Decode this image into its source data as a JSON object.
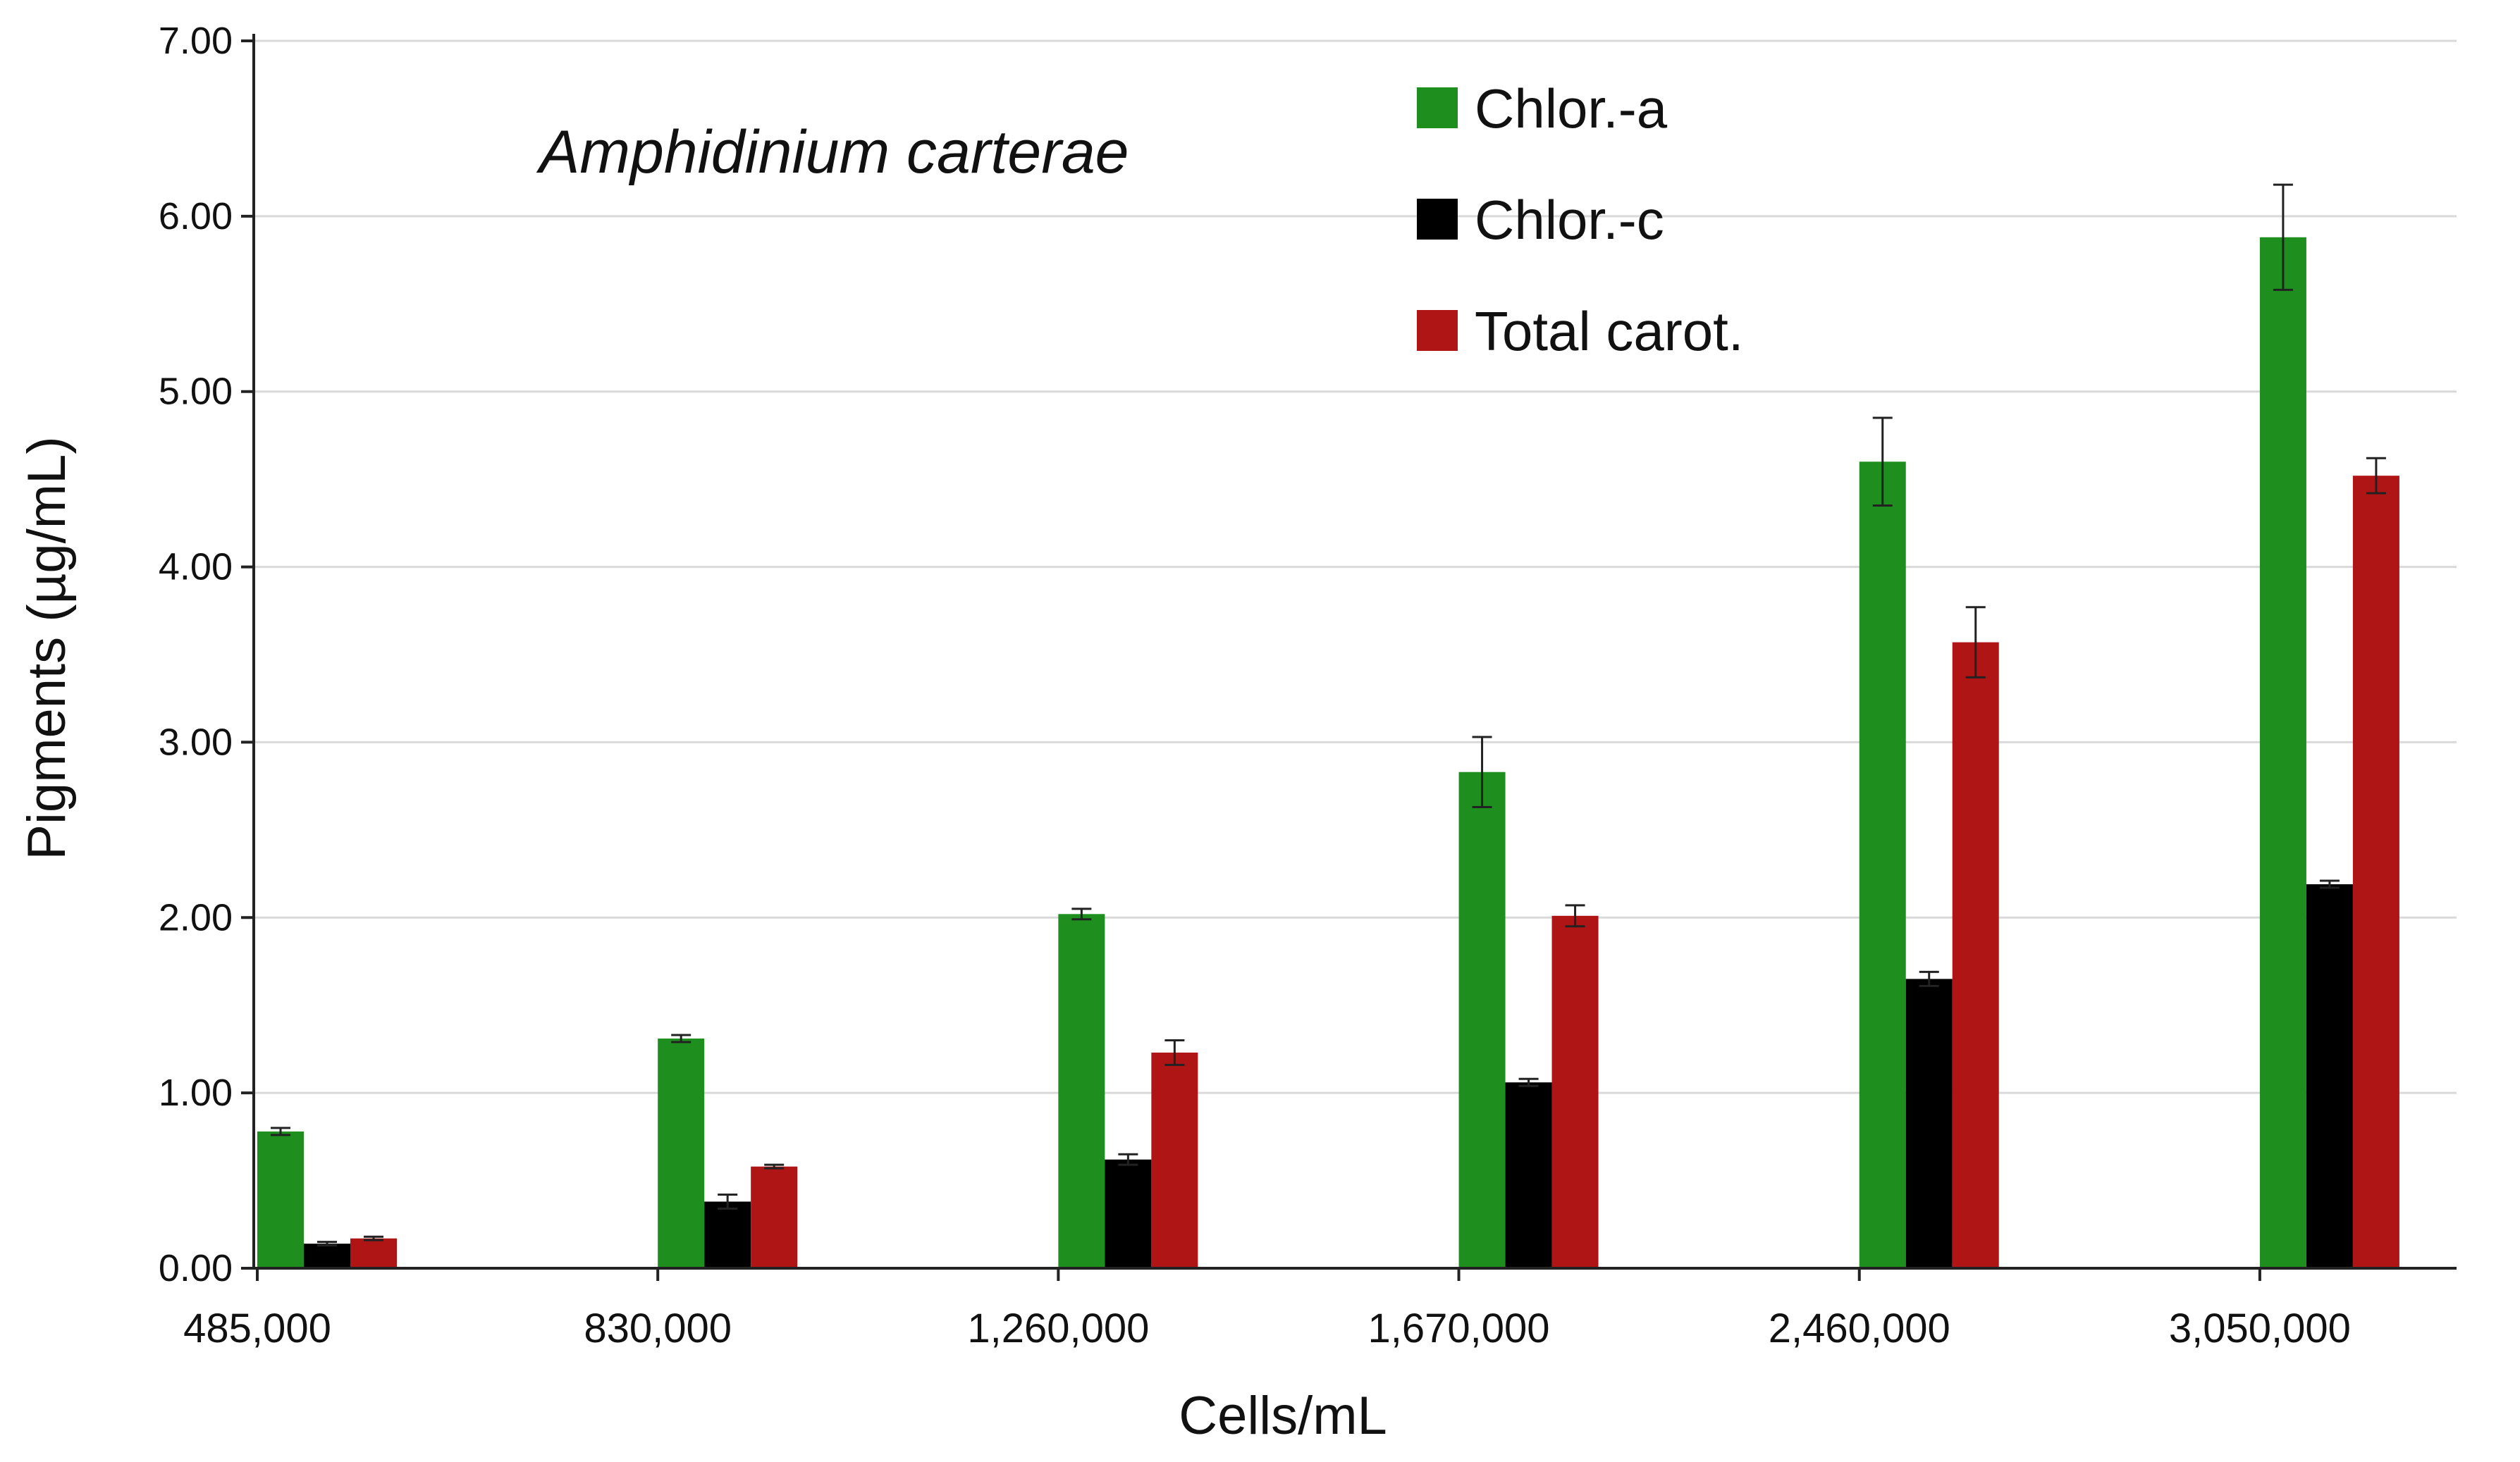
{
  "chart_data": {
    "type": "bar",
    "title": "",
    "annotation": "Amphidinium carterae",
    "xlabel": "Cells/mL",
    "ylabel": "Pigments (µg/mL)",
    "ylim": [
      0,
      7
    ],
    "yticks": [
      "0.00",
      "1.00",
      "2.00",
      "3.00",
      "4.00",
      "5.00",
      "6.00",
      "7.00"
    ],
    "categories": [
      "485,000",
      "830,000",
      "1,260,000",
      "1,670,000",
      "2,460,000",
      "3,050,000"
    ],
    "series": [
      {
        "name": "Chlor.-a",
        "color": "#1e8f1e",
        "values": [
          0.78,
          1.31,
          2.02,
          2.83,
          4.6,
          5.88
        ],
        "errors": [
          0.02,
          0.02,
          0.03,
          0.2,
          0.25,
          0.3
        ]
      },
      {
        "name": "Chlor.-c",
        "color": "#000000",
        "values": [
          0.14,
          0.38,
          0.62,
          1.06,
          1.65,
          2.19
        ],
        "errors": [
          0.01,
          0.04,
          0.03,
          0.02,
          0.04,
          0.02
        ]
      },
      {
        "name": "Total carot.",
        "color": "#b01515",
        "values": [
          0.17,
          0.58,
          1.23,
          2.01,
          3.57,
          4.52
        ],
        "errors": [
          0.01,
          0.01,
          0.07,
          0.06,
          0.2,
          0.1
        ]
      }
    ],
    "grid": true,
    "legend_position": "top-center"
  }
}
